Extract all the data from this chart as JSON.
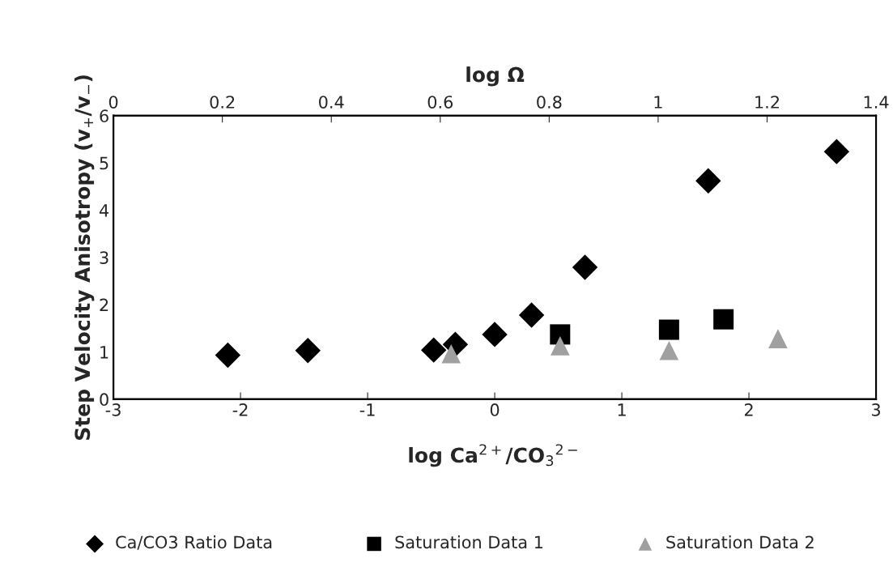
{
  "chart_data": {
    "type": "scatter",
    "xlabel": "log Ca$^{2+}$/CO$_{3}$$^{2−}$",
    "ylabel": "Step Velocity Anisotropy (v$_{+}$/v$_{−}$)",
    "x2label": "log Ω",
    "xlim": [
      -3,
      3
    ],
    "xticks": [
      -3,
      -2,
      -1,
      0,
      1,
      2,
      3
    ],
    "x2lim": [
      0,
      1.4
    ],
    "x2ticks": [
      0,
      0.2,
      0.4,
      0.6,
      0.8,
      1,
      1.2,
      1.4
    ],
    "ylim": [
      0,
      6
    ],
    "yticks": [
      0,
      1,
      2,
      3,
      4,
      5,
      6
    ],
    "grid": false,
    "legend": "bottom",
    "series": [
      {
        "name": "Ca/CO3 Ratio Data",
        "color": "#000000",
        "marker": "diamond",
        "x": [
          -2.1,
          -1.47,
          -0.48,
          -0.31,
          0,
          0.29,
          0.71,
          1.68,
          2.69
        ],
        "values": [
          0.93,
          1.03,
          1.04,
          1.16,
          1.37,
          1.78,
          2.79,
          4.62,
          5.24
        ]
      },
      {
        "name": "Saturation Data 1",
        "color": "#000000",
        "marker": "square",
        "axis": "x2",
        "x": [
          0.82,
          1.02,
          1.12
        ],
        "values": [
          1.37,
          1.47,
          1.69
        ]
      },
      {
        "name": "Saturation Data 2",
        "color": "#a0a0a0",
        "marker": "triangle",
        "axis": "x2",
        "x": [
          0.62,
          0.82,
          1.02,
          1.22
        ],
        "values": [
          0.96,
          1.13,
          1.03,
          1.28
        ]
      }
    ]
  }
}
